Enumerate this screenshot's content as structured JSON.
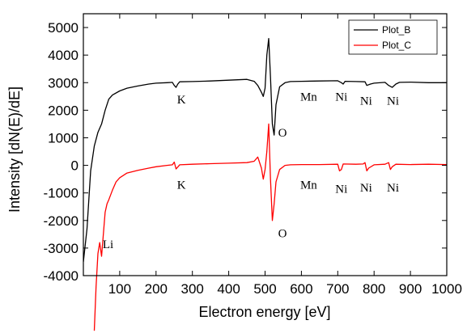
{
  "chart_data": {
    "type": "line",
    "title": "",
    "xlabel": "Electron energy [eV]",
    "ylabel": "Intensity [dN(E)/dE]",
    "xlim": [
      0,
      1000
    ],
    "ylim": [
      -4000,
      5500
    ],
    "xticks": [
      100,
      200,
      300,
      400,
      500,
      600,
      700,
      800,
      900,
      1000
    ],
    "yticks": [
      -4000,
      -3000,
      -2000,
      -1000,
      0,
      1000,
      2000,
      3000,
      4000,
      5000
    ],
    "legend": {
      "position": "top-right",
      "entries": [
        "Plot_B",
        "Plot_C"
      ]
    },
    "series": [
      {
        "name": "Plot_B",
        "color": "#000000",
        "points": [
          [
            0,
            -3500
          ],
          [
            10,
            -2300
          ],
          [
            20,
            -200
          ],
          [
            30,
            700
          ],
          [
            40,
            1200
          ],
          [
            50,
            1500
          ],
          [
            60,
            2000
          ],
          [
            70,
            2400
          ],
          [
            80,
            2550
          ],
          [
            100,
            2700
          ],
          [
            120,
            2800
          ],
          [
            150,
            2880
          ],
          [
            180,
            2950
          ],
          [
            200,
            2980
          ],
          [
            230,
            3000
          ],
          [
            245,
            3010
          ],
          [
            250,
            2900
          ],
          [
            255,
            2830
          ],
          [
            260,
            2950
          ],
          [
            265,
            3030
          ],
          [
            300,
            3040
          ],
          [
            350,
            3060
          ],
          [
            400,
            3090
          ],
          [
            450,
            3120
          ],
          [
            470,
            3050
          ],
          [
            480,
            2900
          ],
          [
            490,
            2650
          ],
          [
            495,
            2500
          ],
          [
            500,
            2800
          ],
          [
            505,
            4000
          ],
          [
            510,
            4600
          ],
          [
            515,
            3200
          ],
          [
            520,
            1500
          ],
          [
            525,
            1100
          ],
          [
            530,
            2200
          ],
          [
            540,
            2850
          ],
          [
            555,
            3000
          ],
          [
            570,
            3040
          ],
          [
            600,
            3050
          ],
          [
            650,
            3060
          ],
          [
            700,
            3070
          ],
          [
            710,
            3000
          ],
          [
            715,
            2950
          ],
          [
            720,
            3050
          ],
          [
            750,
            3040
          ],
          [
            775,
            3030
          ],
          [
            780,
            2900
          ],
          [
            790,
            2950
          ],
          [
            800,
            2980
          ],
          [
            830,
            3010
          ],
          [
            840,
            2900
          ],
          [
            850,
            2830
          ],
          [
            860,
            2950
          ],
          [
            870,
            3010
          ],
          [
            900,
            3020
          ],
          [
            950,
            3000
          ],
          [
            1000,
            3000
          ]
        ]
      },
      {
        "name": "Plot_C",
        "color": "#ff0000",
        "points": [
          [
            30,
            -6000
          ],
          [
            35,
            -4400
          ],
          [
            40,
            -3200
          ],
          [
            45,
            -2800
          ],
          [
            50,
            -3300
          ],
          [
            55,
            -2500
          ],
          [
            60,
            -1700
          ],
          [
            65,
            -1400
          ],
          [
            70,
            -1250
          ],
          [
            80,
            -900
          ],
          [
            90,
            -600
          ],
          [
            100,
            -450
          ],
          [
            120,
            -280
          ],
          [
            150,
            -180
          ],
          [
            180,
            -100
          ],
          [
            200,
            -50
          ],
          [
            230,
            0
          ],
          [
            245,
            20
          ],
          [
            250,
            120
          ],
          [
            255,
            -130
          ],
          [
            260,
            -60
          ],
          [
            265,
            20
          ],
          [
            300,
            40
          ],
          [
            350,
            60
          ],
          [
            400,
            80
          ],
          [
            450,
            100
          ],
          [
            470,
            150
          ],
          [
            480,
            300
          ],
          [
            490,
            -100
          ],
          [
            495,
            -500
          ],
          [
            500,
            -150
          ],
          [
            505,
            500
          ],
          [
            510,
            1500
          ],
          [
            515,
            -500
          ],
          [
            520,
            -2000
          ],
          [
            525,
            -1400
          ],
          [
            530,
            -600
          ],
          [
            540,
            -150
          ],
          [
            555,
            0
          ],
          [
            570,
            20
          ],
          [
            600,
            30
          ],
          [
            650,
            30
          ],
          [
            700,
            40
          ],
          [
            705,
            -200
          ],
          [
            710,
            -150
          ],
          [
            715,
            50
          ],
          [
            750,
            40
          ],
          [
            770,
            50
          ],
          [
            775,
            100
          ],
          [
            780,
            -200
          ],
          [
            785,
            -100
          ],
          [
            800,
            20
          ],
          [
            830,
            40
          ],
          [
            840,
            100
          ],
          [
            845,
            -150
          ],
          [
            850,
            -50
          ],
          [
            860,
            40
          ],
          [
            900,
            30
          ],
          [
            950,
            40
          ],
          [
            1000,
            30
          ]
        ]
      }
    ],
    "annotations": [
      {
        "text": "K",
        "x": 270,
        "y": 2250
      },
      {
        "text": "Mn",
        "x": 620,
        "y": 2350
      },
      {
        "text": "Ni",
        "x": 710,
        "y": 2350
      },
      {
        "text": "Ni",
        "x": 778,
        "y": 2200
      },
      {
        "text": "Ni",
        "x": 852,
        "y": 2200
      },
      {
        "text": "O",
        "x": 548,
        "y": 1050
      },
      {
        "text": "K",
        "x": 270,
        "y": -850
      },
      {
        "text": "Mn",
        "x": 620,
        "y": -850
      },
      {
        "text": "Ni",
        "x": 710,
        "y": -1000
      },
      {
        "text": "Ni",
        "x": 778,
        "y": -950
      },
      {
        "text": "Ni",
        "x": 852,
        "y": -950
      },
      {
        "text": "O",
        "x": 548,
        "y": -2600
      },
      {
        "text": "Li",
        "x": 68,
        "y": -3000
      }
    ]
  }
}
